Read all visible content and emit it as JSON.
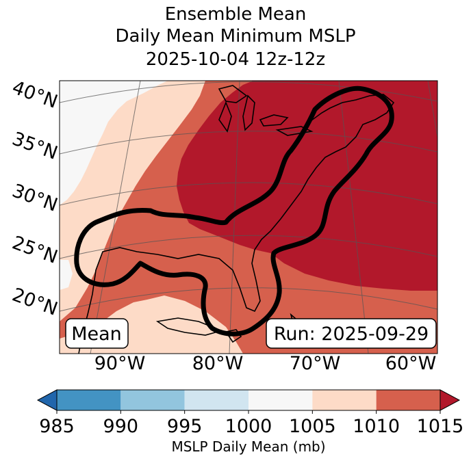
{
  "title": {
    "line1": "Ensemble Mean",
    "line2": "Daily Mean Minimum MSLP",
    "line3": "2025-10-04 12z-12z"
  },
  "map": {
    "lat_labels": [
      "40°N",
      "35°N",
      "30°N",
      "25°N",
      "20°N"
    ],
    "lon_labels": [
      "90°W",
      "80°W",
      "70°W",
      "60°W"
    ],
    "mean_label": "Mean",
    "run_label": "Run: 2025-09-29",
    "contour_color": "#000000",
    "coastline_color": "#000000"
  },
  "legend": {
    "label": "MSLP Daily Mean (mb)",
    "ticks": [
      "985",
      "990",
      "995",
      "1000",
      "1005",
      "1010",
      "1015"
    ],
    "bins": [
      {
        "range": "<985",
        "color": "#2166ac"
      },
      {
        "range": "985-990",
        "color": "#4393c3"
      },
      {
        "range": "990-995",
        "color": "#92c5de"
      },
      {
        "range": "995-1000",
        "color": "#d1e5f0"
      },
      {
        "range": "1000-1005",
        "color": "#f7f7f7"
      },
      {
        "range": "1005-1010",
        "color": "#fddbc7"
      },
      {
        "range": "1010-1015",
        "color": "#d6604d"
      },
      {
        "range": ">1015",
        "color": "#b2182b"
      }
    ]
  }
}
